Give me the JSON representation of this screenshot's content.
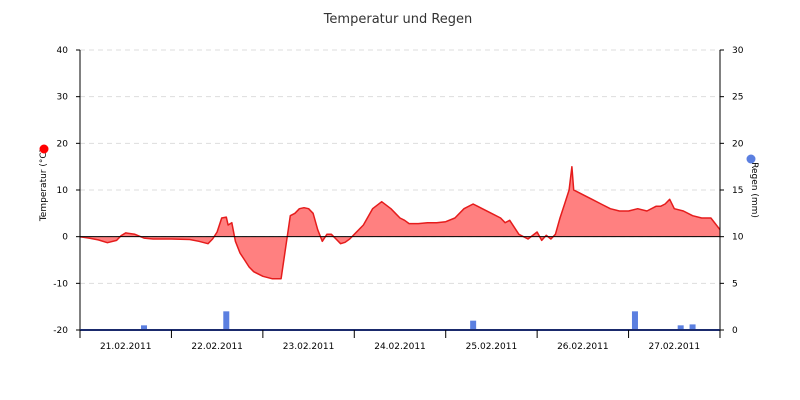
{
  "chart_data": {
    "type": "area",
    "title": "Temperatur und Regen",
    "colors": {
      "temperature": "#e51c1c",
      "temperature_fill": "#ff8080",
      "rain": "#5b7fe0",
      "grid": "#dddddd",
      "axis": "#000000"
    },
    "x_categories": [
      "21.02.2011",
      "22.02.2011",
      "23.02.2011",
      "24.02.2011",
      "25.02.2011",
      "26.02.2011",
      "27.02.2011"
    ],
    "x_range_days": [
      0,
      7
    ],
    "y_left": {
      "label": "Temperatur (°C)",
      "range": [
        -20,
        40
      ],
      "ticks": [
        -20,
        -10,
        0,
        10,
        20,
        30,
        40
      ],
      "tick_labels": [
        "-20",
        "-10",
        "0",
        "10",
        "20",
        "30",
        "40"
      ]
    },
    "y_right": {
      "label": "Regen (mm)",
      "range": [
        0,
        30
      ],
      "ticks": [
        0,
        5,
        10,
        15,
        20,
        25,
        30
      ],
      "tick_labels": [
        "0",
        "5",
        "10",
        "15",
        "20",
        "25",
        "30"
      ]
    },
    "grid": true,
    "series": [
      {
        "name": "Temperatur (°C)",
        "type": "area",
        "axis": "left",
        "x": [
          0.0,
          0.1,
          0.2,
          0.3,
          0.4,
          0.45,
          0.5,
          0.6,
          0.7,
          0.8,
          1.0,
          1.2,
          1.3,
          1.4,
          1.45,
          1.5,
          1.55,
          1.6,
          1.62,
          1.66,
          1.7,
          1.75,
          1.8,
          1.85,
          1.9,
          2.0,
          2.1,
          2.2,
          2.3,
          2.35,
          2.4,
          2.45,
          2.5,
          2.55,
          2.6,
          2.65,
          2.7,
          2.75,
          2.8,
          2.85,
          2.9,
          2.95,
          3.0,
          3.1,
          3.2,
          3.3,
          3.4,
          3.45,
          3.5,
          3.55,
          3.6,
          3.7,
          3.8,
          3.9,
          4.0,
          4.1,
          4.2,
          4.3,
          4.35,
          4.4,
          4.5,
          4.6,
          4.65,
          4.7,
          4.8,
          4.9,
          5.0,
          5.05,
          5.1,
          5.15,
          5.2,
          5.25,
          5.3,
          5.35,
          5.38,
          5.4,
          5.45,
          5.5,
          5.6,
          5.7,
          5.8,
          5.9,
          6.0,
          6.1,
          6.2,
          6.3,
          6.35,
          6.4,
          6.45,
          6.5,
          6.6,
          6.7,
          6.8,
          6.9,
          7.0
        ],
        "values": [
          0,
          -0.3,
          -0.7,
          -1.3,
          -0.8,
          0.2,
          0.8,
          0.5,
          -0.3,
          -0.5,
          -0.5,
          -0.6,
          -1.0,
          -1.5,
          -0.5,
          1.0,
          4.0,
          4.2,
          2.5,
          3.0,
          -1.0,
          -3.5,
          -5.0,
          -6.5,
          -7.5,
          -8.5,
          -9.0,
          -9.0,
          4.5,
          5.0,
          6.0,
          6.2,
          6.0,
          5.0,
          1.5,
          -1.0,
          0.5,
          0.5,
          -0.5,
          -1.5,
          -1.2,
          -0.5,
          0.5,
          2.5,
          6.0,
          7.5,
          6.0,
          5.0,
          4.0,
          3.5,
          2.8,
          2.8,
          3.0,
          3.0,
          3.2,
          4.0,
          6.0,
          7.0,
          6.5,
          6.0,
          5.0,
          4.0,
          3.0,
          3.5,
          0.5,
          -0.5,
          1.0,
          -0.8,
          0.3,
          -0.5,
          0.5,
          4.0,
          7.0,
          10.0,
          15.0,
          10.0,
          9.5,
          9.0,
          8.0,
          7.0,
          6.0,
          5.5,
          5.5,
          6.0,
          5.5,
          6.5,
          6.5,
          7.0,
          8.0,
          6.0,
          5.5,
          4.5,
          4.0,
          4.0,
          1.5
        ]
      },
      {
        "name": "Regen (mm)",
        "type": "bar",
        "axis": "right",
        "x": [
          0.7,
          1.6,
          4.3,
          6.07,
          6.57,
          6.7
        ],
        "values": [
          0.5,
          2.0,
          1.0,
          2.0,
          0.5,
          0.6
        ]
      }
    ],
    "legend_markers": [
      {
        "axis": "left",
        "color": "#ff0000"
      },
      {
        "axis": "right",
        "color": "#5b7fe0"
      }
    ]
  }
}
